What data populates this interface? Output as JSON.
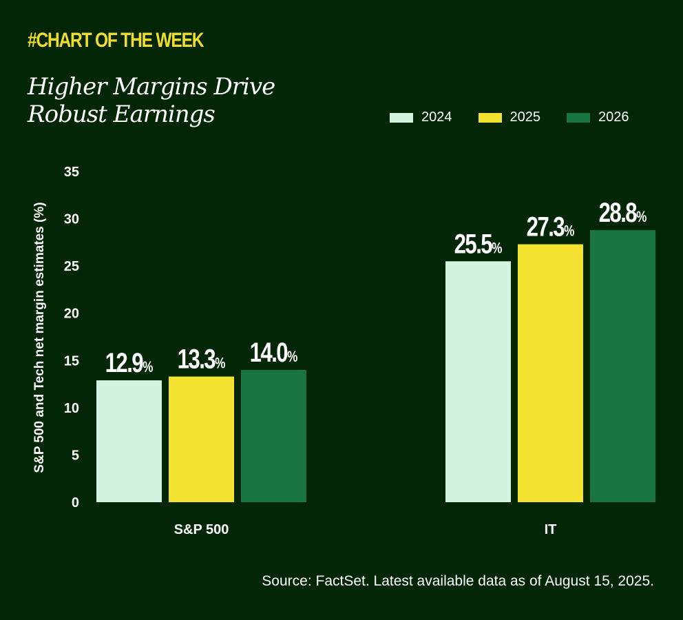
{
  "header": {
    "kicker": "#CHART OF THE WEEK",
    "title_line1": "Higher Margins Drive",
    "title_line2": "Robust Earnings"
  },
  "colors": {
    "background": "#032607",
    "kicker": "#f3dd2c",
    "series_2024": "#d3f2e0",
    "series_2025": "#f3e130",
    "series_2026": "#187543"
  },
  "chart_data": {
    "type": "bar",
    "title": "Higher Margins Drive Robust Earnings",
    "xlabel": "",
    "ylabel": "S&P 500 and Tech net margin estimates (%)",
    "ylim": [
      0,
      35
    ],
    "yticks": [
      0,
      5,
      10,
      15,
      20,
      25,
      30,
      35
    ],
    "grid": false,
    "legend_position": "top-right",
    "categories": [
      "S&P 500",
      "IT"
    ],
    "series": [
      {
        "name": "2024",
        "values": [
          12.9,
          25.5
        ],
        "labels": [
          "12.9",
          "25.5"
        ],
        "color": "#d3f2e0"
      },
      {
        "name": "2025",
        "values": [
          13.3,
          27.3
        ],
        "labels": [
          "13.3",
          "27.3"
        ],
        "color": "#f3e130"
      },
      {
        "name": "2026",
        "values": [
          14.0,
          28.8
        ],
        "labels": [
          "14.0",
          "28.8"
        ],
        "color": "#187543"
      }
    ],
    "label_suffix": "%"
  },
  "footer": {
    "source": "Source: FactSet. Latest available data as of August 15, 2025."
  }
}
